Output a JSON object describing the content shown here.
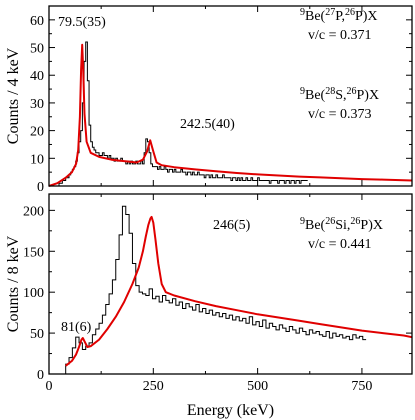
{
  "chart_data": [
    {
      "type": "line",
      "panel": "top",
      "ylabel": "Counts / 4 keV",
      "xlim": [
        0,
        870
      ],
      "ylim": [
        0,
        65
      ],
      "yticks": [
        0,
        10,
        20,
        30,
        40,
        50,
        60
      ],
      "xticks": [
        0,
        250,
        500,
        750
      ],
      "reactions": [
        {
          "pre": "9",
          "mid": "Be(",
          "beam": "27",
          "rest": "P,",
          "frag": "26",
          "end": "P)X",
          "vc": "v/c = 0.371"
        },
        {
          "pre": "9",
          "mid": "Be(",
          "beam": "28",
          "rest": "S,",
          "frag": "26",
          "end": "P)X",
          "vc": "v/c = 0.373"
        }
      ],
      "peaks": [
        {
          "x": 79.5,
          "label": "79.5(35)"
        },
        {
          "x": 242.5,
          "label": "242.5(40)"
        }
      ],
      "series": [
        {
          "type": "step",
          "bin_width": 4,
          "x_start": 20,
          "values": [
            0,
            1,
            1,
            2,
            2,
            3,
            3,
            4,
            5,
            6,
            7,
            9,
            12,
            16,
            20,
            30,
            45,
            52,
            38,
            22,
            16,
            14,
            13,
            12,
            12,
            11,
            11,
            12,
            11,
            11,
            10,
            11,
            10,
            10,
            9,
            10,
            9,
            9,
            10,
            9,
            9,
            8,
            9,
            8,
            9,
            8,
            8,
            9,
            8,
            8,
            9,
            8,
            12,
            17,
            16,
            12,
            8,
            7,
            7,
            7,
            6,
            7,
            6,
            6,
            7,
            6,
            5,
            6,
            6,
            5,
            6,
            5,
            5,
            5,
            6,
            5,
            5,
            4,
            5,
            5,
            4,
            5,
            4,
            4,
            5,
            4,
            4,
            4,
            3,
            4,
            4,
            3,
            4,
            3,
            3,
            4,
            3,
            3,
            3,
            4,
            3,
            3,
            3,
            3,
            2,
            3,
            3,
            2,
            3,
            2,
            3,
            2,
            2,
            3,
            2,
            2,
            3,
            2,
            2,
            2,
            3,
            2,
            2,
            2,
            2,
            2,
            2,
            1,
            2,
            2,
            2,
            2,
            1,
            2,
            2,
            2,
            1,
            2,
            2,
            1,
            2,
            2,
            1,
            2,
            2,
            1,
            2,
            2,
            2,
            2
          ]
        },
        {
          "type": "fit",
          "x": [
            0,
            20,
            40,
            55,
            65,
            70,
            74,
            77,
            79.5,
            82,
            85,
            90,
            100,
            120,
            150,
            180,
            210,
            225,
            235,
            242.5,
            250,
            258,
            270,
            300,
            350,
            400,
            450,
            500,
            550,
            600,
            650,
            700,
            750,
            800,
            850,
            870
          ],
          "y": [
            0,
            1,
            3,
            5,
            8,
            13,
            25,
            42,
            51,
            42,
            26,
            16,
            12,
            10.5,
            9.5,
            9,
            8.5,
            9.5,
            12.5,
            16.5,
            12.5,
            8.5,
            7.5,
            6.8,
            6,
            5.3,
            4.7,
            4.2,
            3.8,
            3.4,
            3.1,
            2.8,
            2.5,
            2.3,
            2.1,
            2
          ]
        }
      ]
    },
    {
      "type": "line",
      "panel": "bottom",
      "xlabel": "Energy (keV)",
      "ylabel": "Counts / 8 keV",
      "xlim": [
        0,
        870
      ],
      "ylim": [
        0,
        220
      ],
      "yticks": [
        0,
        50,
        100,
        150,
        200
      ],
      "xticks": [
        0,
        250,
        500,
        750
      ],
      "xticklabels": [
        "0",
        "250",
        "500",
        "750"
      ],
      "reactions": [
        {
          "pre": "9",
          "mid": "Be(",
          "beam": "26",
          "rest": "Si,",
          "frag": "26",
          "end": "P)X",
          "vc": "v/c = 0.441"
        }
      ],
      "peaks": [
        {
          "x": 81,
          "label": "81(6)"
        },
        {
          "x": 246,
          "label": "246(5)"
        }
      ],
      "series": [
        {
          "type": "step",
          "bin_width": 8,
          "x_start": 40,
          "values": [
            12,
            20,
            32,
            45,
            38,
            30,
            34,
            38,
            48,
            55,
            62,
            72,
            85,
            98,
            115,
            140,
            170,
            205,
            195,
            172,
            135,
            108,
            100,
            98,
            96,
            104,
            92,
            95,
            88,
            96,
            90,
            87,
            92,
            84,
            88,
            80,
            86,
            82,
            78,
            85,
            76,
            80,
            74,
            78,
            72,
            75,
            70,
            74,
            68,
            72,
            66,
            70,
            65,
            68,
            62,
            70,
            60,
            64,
            58,
            66,
            56,
            62,
            58,
            54,
            60,
            56,
            52,
            58,
            54,
            50,
            56,
            52,
            48,
            54,
            50,
            52,
            48,
            46,
            52,
            44,
            50,
            46,
            48,
            44,
            46,
            42,
            48,
            44,
            46,
            42
          ]
        },
        {
          "type": "fit",
          "x": [
            40,
            55,
            65,
            72,
            78,
            81,
            85,
            92,
            100,
            120,
            140,
            160,
            180,
            200,
            215,
            225,
            232,
            238,
            243,
            246,
            250,
            255,
            262,
            270,
            280,
            300,
            350,
            400,
            450,
            500,
            550,
            600,
            650,
            700,
            750,
            800,
            850,
            870
          ],
          "y": [
            10,
            16,
            24,
            33,
            42,
            44,
            40,
            33,
            34,
            42,
            55,
            70,
            88,
            110,
            130,
            150,
            168,
            182,
            190,
            192,
            185,
            165,
            135,
            110,
            100,
            96,
            89,
            83,
            78,
            73,
            69,
            65,
            61,
            57,
            53,
            50,
            47,
            45
          ]
        }
      ]
    }
  ]
}
